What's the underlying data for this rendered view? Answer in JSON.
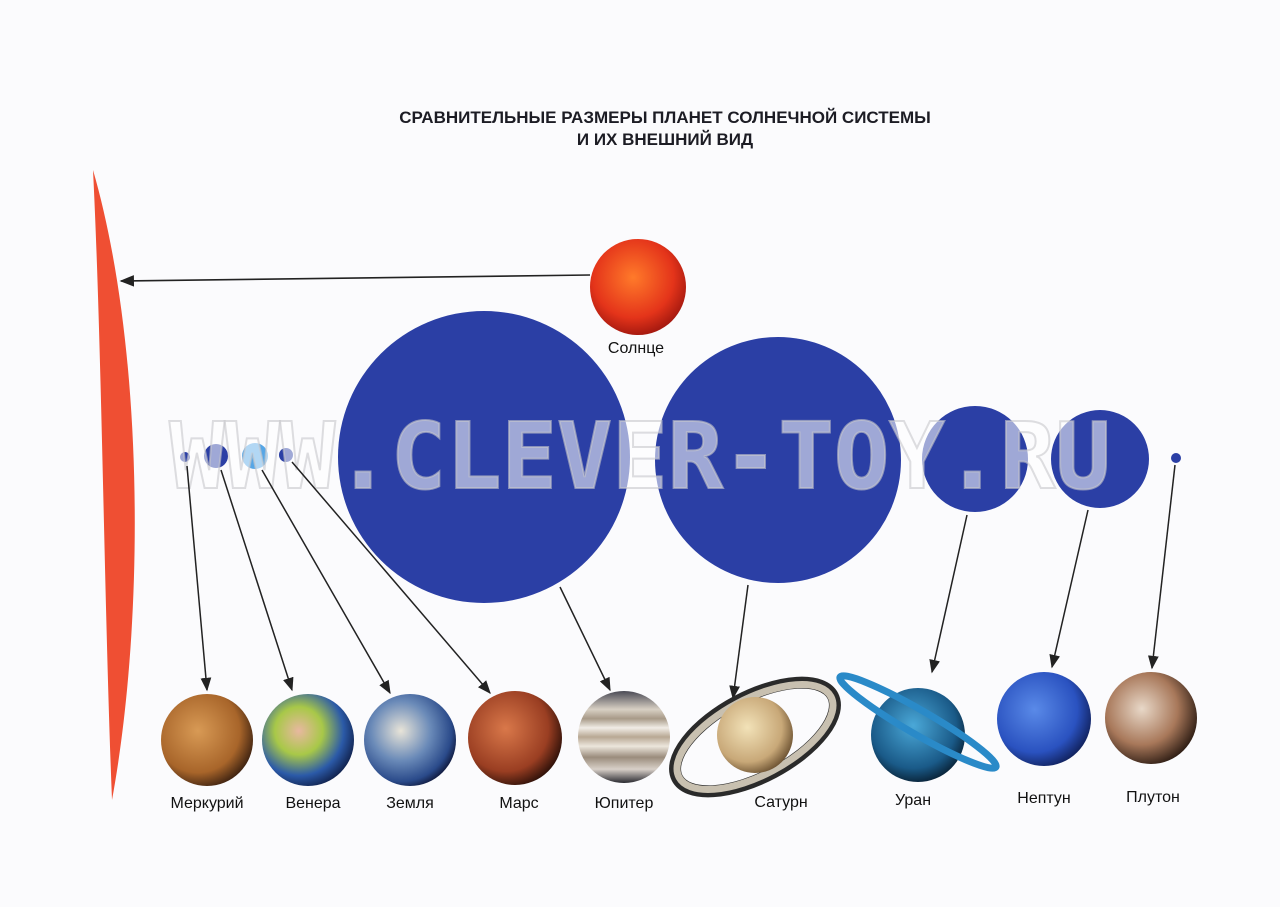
{
  "title": {
    "line1": "СРАВНИТЕЛЬНЫЕ РАЗМЕРЫ ПЛАНЕТ СОЛНЕЧНОЙ СИСТЕМЫ",
    "line2": "И ИХ ВНЕШНИЙ ВИД"
  },
  "sun": {
    "label": "Солнце",
    "color": "#e8482a"
  },
  "watermark": "WWW.CLEVER-TOY.RU",
  "colors": {
    "scale_disc": "#2b3fa5",
    "earth_disc": "#56a6e6",
    "sun_arc": "#ef4f33",
    "arrow": "#222222"
  },
  "planets": [
    {
      "name": "Меркурий"
    },
    {
      "name": "Венера"
    },
    {
      "name": "Земля"
    },
    {
      "name": "Марс"
    },
    {
      "name": "Юпитер"
    },
    {
      "name": "Сатурн"
    },
    {
      "name": "Уран"
    },
    {
      "name": "Нептун"
    },
    {
      "name": "Плутон"
    }
  ]
}
